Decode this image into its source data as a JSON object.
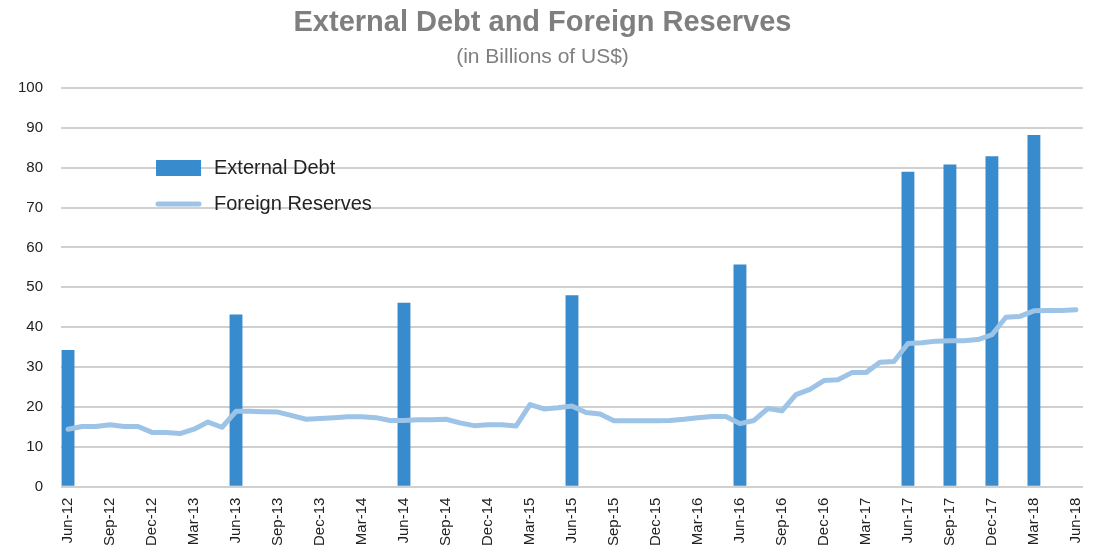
{
  "chart_data": {
    "type": "bar",
    "title": "External Debt and Foreign Reserves",
    "subtitle": "(in Billions of US$)",
    "categories": [
      "Jun-12",
      null,
      null,
      "Sep-12",
      null,
      null,
      "Dec-12",
      null,
      null,
      "Mar-13",
      null,
      null,
      "Jun-13",
      null,
      null,
      "Sep-13",
      null,
      null,
      "Dec-13",
      null,
      null,
      "Mar-14",
      null,
      null,
      "Jun-14",
      null,
      null,
      "Sep-14",
      null,
      null,
      "Dec-14",
      null,
      null,
      "Mar-15",
      null,
      null,
      "Jun-15",
      null,
      null,
      "Sep-15",
      null,
      null,
      "Dec-15",
      null,
      null,
      "Mar-16",
      null,
      null,
      "Jun-16",
      null,
      null,
      "Sep-16",
      null,
      null,
      "Dec-16",
      null,
      null,
      "Mar-17",
      null,
      null,
      "Jun-17",
      null,
      null,
      "Sep-17",
      null,
      null,
      "Dec-17",
      null,
      null,
      "Mar-18",
      null,
      null,
      "Jun-18"
    ],
    "series": [
      {
        "name": "External Debt",
        "color": "#388bcc",
        "values": [
          34.3,
          null,
          null,
          null,
          null,
          null,
          null,
          null,
          null,
          null,
          null,
          null,
          43.2,
          null,
          null,
          null,
          null,
          null,
          null,
          null,
          null,
          null,
          null,
          null,
          46.1,
          null,
          null,
          null,
          null,
          null,
          null,
          null,
          null,
          null,
          null,
          null,
          48,
          null,
          null,
          null,
          null,
          null,
          null,
          null,
          null,
          null,
          null,
          null,
          55.7,
          null,
          null,
          null,
          null,
          null,
          null,
          null,
          null,
          null,
          null,
          null,
          79,
          null,
          null,
          80.8,
          null,
          null,
          82.9,
          null,
          null,
          88.2,
          null,
          null,
          null
        ]
      },
      {
        "name": "Foreign Reserves",
        "type": "line",
        "color": "#9dc3e6",
        "values": [
          14.4,
          15.1,
          15.1,
          15.5,
          15.1,
          15.1,
          13.6,
          13.6,
          13.3,
          14.4,
          16.2,
          14.9,
          18.9,
          18.9,
          18.8,
          18.7,
          17.8,
          16.9,
          17.1,
          17.3,
          17.5,
          17.5,
          17.3,
          16.6,
          16.6,
          16.8,
          16.8,
          16.9,
          16,
          15.3,
          15.5,
          15.5,
          15.2,
          20.6,
          19.5,
          19.8,
          20.2,
          18.6,
          18.2,
          16.5,
          16.5,
          16.5,
          16.5,
          16.6,
          16.9,
          17.3,
          17.6,
          17.6,
          15.8,
          16.6,
          19.6,
          19,
          23.1,
          24.4,
          26.6,
          26.8,
          28.6,
          28.6,
          31.2,
          31.4,
          35.9,
          36.1,
          36.5,
          36.6,
          36.6,
          36.9,
          38.1,
          42.5,
          42.7,
          44.1,
          44.2,
          44.2,
          44.4
        ]
      }
    ],
    "ylim": [
      0,
      100
    ],
    "yticks": [
      0,
      10,
      20,
      30,
      40,
      50,
      60,
      70,
      80,
      90,
      100
    ],
    "grid": "y",
    "legend": "top left",
    "marker": "none",
    "line_style": "solid"
  }
}
